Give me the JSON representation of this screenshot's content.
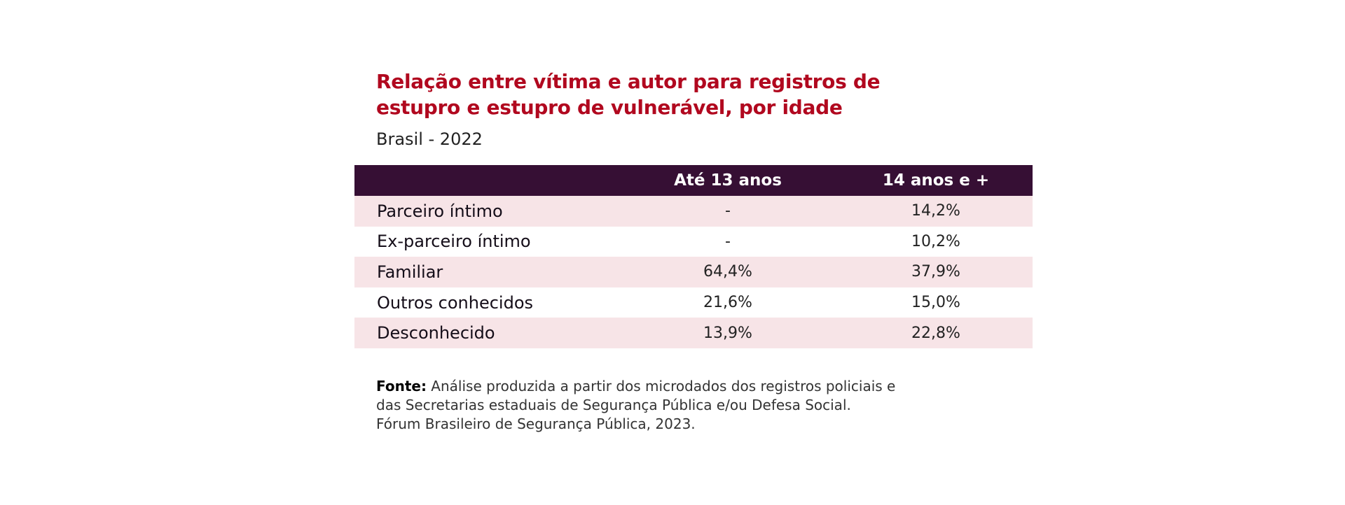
{
  "colors": {
    "title": "#b1081f",
    "header_bg": "#360f34",
    "row_shaded": "#f7e4e7",
    "text": "#222222"
  },
  "chart_data": {
    "type": "table",
    "title_lines": [
      "Relação entre vítima e autor para registros de",
      "estupro e estupro de vulnerável, por idade"
    ],
    "subtitle": "Brasil - 2022",
    "columns": [
      "",
      "Até 13 anos",
      "14 anos e +"
    ],
    "rows": [
      {
        "label": "Parceiro íntimo",
        "values": [
          "-",
          "14,2%"
        ]
      },
      {
        "label": "Ex-parceiro íntimo",
        "values": [
          "-",
          "10,2%"
        ]
      },
      {
        "label": "Familiar",
        "values": [
          "64,4%",
          "37,9%"
        ]
      },
      {
        "label": "Outros conhecidos",
        "values": [
          "21,6%",
          "15,0%"
        ]
      },
      {
        "label": "Desconhecido",
        "values": [
          "13,9%",
          "22,8%"
        ]
      }
    ]
  },
  "source": {
    "label": "Fonte:",
    "line1": " Análise produzida a partir dos microdados dos registros policiais e",
    "line2": "das Secretarias estaduais de Segurança Pública e/ou Defesa Social.",
    "line3": "Fórum Brasileiro de Segurança Pública, 2023."
  }
}
